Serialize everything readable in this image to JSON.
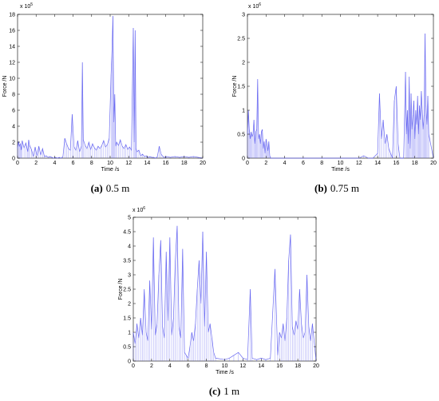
{
  "figure": {
    "background": "#ffffff",
    "series_color": "#5b5bf0",
    "axes_color": "#000000"
  },
  "chart_data": [
    {
      "type": "line",
      "caption_label": "(a)",
      "caption_text": "0.5 m",
      "xlabel": "Time /s",
      "ylabel": "Force /N",
      "xlim": [
        0,
        20
      ],
      "ylim": [
        0,
        18
      ],
      "xticks": [
        0,
        2,
        4,
        6,
        8,
        10,
        12,
        14,
        16,
        18,
        20
      ],
      "yticks": [
        0,
        2,
        4,
        6,
        8,
        10,
        12,
        14,
        16,
        18
      ],
      "multiplier_base": "x 10",
      "multiplier_exp": "5",
      "series": [
        {
          "x": [
            0.0,
            0.1,
            0.2,
            0.3,
            0.4,
            0.5,
            0.7,
            0.9,
            1.1,
            1.2,
            1.3,
            1.5,
            1.7,
            1.9,
            2.1,
            2.3,
            2.5,
            2.7,
            2.9,
            3.1,
            3.3,
            3.5,
            3.7,
            3.9,
            4.1,
            4.3,
            4.5,
            4.7,
            4.9,
            5.1,
            5.3,
            5.5,
            5.7,
            5.9,
            6.1,
            6.3,
            6.5,
            6.7,
            6.9,
            7.0,
            7.1,
            7.3,
            7.5,
            7.7,
            7.9,
            8.1,
            8.3,
            8.5,
            8.7,
            8.9,
            9.1,
            9.3,
            9.5,
            9.7,
            9.9,
            10.1,
            10.2,
            10.3,
            10.4,
            10.5,
            10.6,
            10.7,
            10.9,
            11.1,
            11.3,
            11.5,
            11.7,
            11.9,
            12.1,
            12.3,
            12.5,
            12.6,
            12.7,
            12.8,
            12.9,
            13.1,
            13.3,
            13.5,
            13.7,
            13.9,
            14.1,
            14.3,
            14.5,
            14.7,
            14.9,
            15.1,
            15.3,
            15.5,
            15.7,
            15.9,
            16.1,
            16.5,
            17.0,
            17.5,
            18.0,
            18.5,
            19.0,
            19.5,
            20.0
          ],
          "y": [
            1.2,
            2.1,
            1.5,
            1.8,
            1.0,
            2.2,
            1.3,
            1.9,
            0.8,
            2.3,
            1.6,
            1.1,
            0.2,
            1.4,
            0.3,
            1.5,
            0.4,
            1.2,
            0.2,
            0.3,
            0.1,
            0.2,
            0.1,
            0.0,
            0.1,
            0.0,
            0.1,
            0.0,
            0.2,
            2.5,
            1.8,
            1.2,
            1.0,
            5.5,
            1.4,
            1.0,
            2.2,
            0.8,
            1.5,
            12.0,
            2.3,
            1.6,
            1.2,
            2.0,
            1.1,
            1.8,
            1.3,
            1.0,
            1.5,
            1.2,
            1.6,
            2.2,
            1.4,
            1.7,
            2.5,
            10.5,
            13.5,
            17.8,
            4.5,
            8.0,
            1.5,
            2.0,
            1.6,
            2.3,
            1.5,
            1.2,
            1.7,
            1.1,
            1.4,
            1.0,
            16.3,
            2.0,
            16.0,
            1.2,
            0.8,
            1.0,
            0.3,
            0.5,
            0.2,
            0.3,
            0.1,
            0.2,
            0.1,
            0.1,
            0.0,
            0.2,
            1.5,
            0.5,
            0.2,
            0.1,
            0.2,
            0.1,
            0.2,
            0.1,
            0.2,
            0.1,
            0.2,
            0.1,
            0.0
          ]
        }
      ]
    },
    {
      "type": "line",
      "caption_label": "(b)",
      "caption_text": "0.75 m",
      "xlabel": "Time /s",
      "ylabel": "Force /N",
      "xlim": [
        0,
        20
      ],
      "ylim": [
        0,
        3
      ],
      "xticks": [
        0,
        2,
        4,
        6,
        8,
        10,
        12,
        14,
        16,
        18,
        20
      ],
      "yticks": [
        0,
        0.5,
        1,
        1.5,
        2,
        2.5,
        3
      ],
      "ytick_labels": [
        "0",
        "0.5",
        "1",
        "1.5",
        "2",
        "2.5",
        "3"
      ],
      "multiplier_base": "x 10",
      "multiplier_exp": "6",
      "series": [
        {
          "x": [
            0.0,
            0.1,
            0.2,
            0.3,
            0.4,
            0.5,
            0.6,
            0.7,
            0.8,
            0.9,
            1.0,
            1.1,
            1.2,
            1.3,
            1.4,
            1.5,
            1.6,
            1.7,
            1.8,
            1.9,
            2.0,
            2.1,
            2.2,
            2.3,
            2.4,
            2.5,
            3.0,
            4.0,
            5.0,
            6.0,
            7.0,
            8.0,
            9.0,
            10.0,
            11.0,
            12.0,
            12.5,
            13.0,
            13.5,
            14.0,
            14.2,
            14.4,
            14.6,
            14.8,
            15.0,
            15.2,
            15.4,
            15.6,
            15.8,
            16.0,
            16.2,
            16.4,
            16.6,
            16.8,
            17.0,
            17.1,
            17.2,
            17.3,
            17.4,
            17.5,
            17.6,
            17.7,
            17.8,
            17.9,
            18.0,
            18.1,
            18.2,
            18.3,
            18.4,
            18.5,
            18.6,
            18.7,
            18.8,
            18.9,
            19.0,
            19.1,
            19.2,
            19.3,
            19.4,
            19.5,
            20.0
          ],
          "y": [
            0.5,
            1.0,
            0.6,
            0.4,
            0.55,
            0.45,
            0.5,
            0.8,
            0.3,
            0.55,
            0.6,
            1.65,
            0.4,
            0.5,
            0.3,
            0.55,
            0.6,
            0.2,
            0.35,
            0.1,
            0.4,
            0.3,
            0.15,
            0.35,
            0.05,
            0.0,
            0.0,
            0.0,
            0.0,
            0.0,
            0.0,
            0.0,
            0.0,
            0.0,
            0.0,
            0.0,
            0.05,
            0.0,
            0.0,
            0.1,
            1.35,
            0.4,
            0.8,
            0.3,
            0.5,
            0.2,
            0.1,
            0.0,
            1.2,
            1.5,
            0.3,
            0.0,
            0.0,
            0.0,
            1.8,
            0.5,
            1.0,
            0.3,
            1.7,
            0.2,
            1.35,
            0.6,
            0.9,
            1.2,
            0.4,
            1.0,
            0.7,
            1.3,
            0.5,
            1.1,
            0.8,
            1.4,
            1.0,
            0.6,
            0.9,
            2.6,
            1.1,
            0.7,
            1.3,
            0.5,
            0.0
          ]
        }
      ]
    },
    {
      "type": "line",
      "caption_label": "(c)",
      "caption_text": "1 m",
      "xlabel": "Time /s",
      "ylabel": "Force /N",
      "xlim": [
        0,
        20
      ],
      "ylim": [
        0,
        5
      ],
      "xticks": [
        0,
        2,
        4,
        6,
        8,
        10,
        12,
        14,
        16,
        18,
        20
      ],
      "yticks": [
        0,
        0.5,
        1,
        1.5,
        2,
        2.5,
        3,
        3.5,
        4,
        4.5,
        5
      ],
      "ytick_labels": [
        "0",
        "0.5",
        "1",
        "1.5",
        "2",
        "2.5",
        "3",
        "3.5",
        "4",
        "4.5",
        "5"
      ],
      "multiplier_base": "x 10",
      "multiplier_exp": "6",
      "series": [
        {
          "x": [
            0.0,
            0.2,
            0.4,
            0.6,
            0.8,
            1.0,
            1.2,
            1.4,
            1.6,
            1.8,
            2.0,
            2.2,
            2.4,
            2.6,
            2.8,
            3.0,
            3.2,
            3.4,
            3.6,
            3.8,
            4.0,
            4.2,
            4.4,
            4.6,
            4.8,
            5.0,
            5.2,
            5.4,
            5.6,
            5.8,
            6.0,
            6.2,
            6.4,
            6.6,
            6.8,
            7.0,
            7.2,
            7.4,
            7.6,
            7.8,
            8.0,
            8.2,
            8.4,
            8.6,
            8.8,
            9.0,
            10.0,
            10.5,
            11.0,
            11.5,
            12.0,
            12.5,
            12.8,
            13.0,
            13.5,
            14.0,
            14.5,
            15.0,
            15.5,
            15.8,
            16.0,
            16.2,
            16.4,
            16.6,
            16.8,
            17.0,
            17.2,
            17.4,
            17.6,
            17.8,
            18.0,
            18.2,
            18.4,
            18.6,
            18.8,
            19.0,
            19.2,
            19.4,
            19.6,
            20.0
          ],
          "y": [
            1.0,
            0.6,
            1.3,
            0.8,
            1.5,
            0.9,
            2.5,
            1.0,
            0.7,
            2.8,
            1.1,
            4.3,
            0.9,
            1.3,
            3.0,
            4.2,
            1.2,
            0.8,
            3.8,
            1.4,
            4.3,
            0.9,
            1.5,
            3.5,
            4.7,
            1.2,
            0.8,
            3.9,
            0.3,
            0.2,
            0.1,
            0.5,
            1.0,
            0.7,
            1.3,
            2.5,
            3.5,
            2.0,
            4.5,
            1.2,
            3.8,
            1.0,
            1.3,
            0.8,
            0.3,
            0.1,
            0.05,
            0.1,
            0.2,
            0.3,
            0.1,
            0.05,
            2.5,
            0.1,
            0.05,
            0.1,
            0.05,
            0.1,
            3.2,
            0.2,
            1.0,
            0.8,
            1.3,
            0.7,
            1.5,
            3.5,
            4.4,
            1.2,
            0.9,
            1.4,
            1.1,
            2.5,
            1.3,
            0.8,
            1.0,
            3.0,
            1.2,
            0.7,
            1.3,
            0.0
          ]
        }
      ]
    }
  ]
}
